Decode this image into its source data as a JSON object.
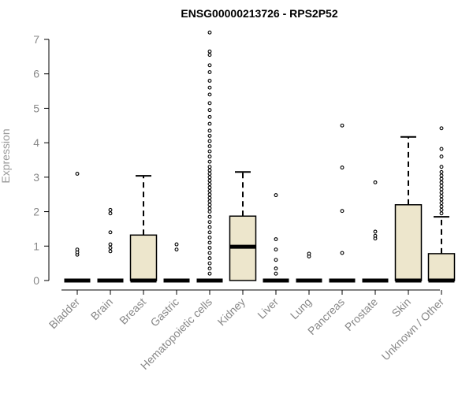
{
  "chart_data": {
    "type": "boxplot",
    "title": "ENSG00000213726 - RPS2P52",
    "ylabel": "Expression",
    "xlabel": "",
    "ylim": [
      0,
      7
    ],
    "yticks": [
      0,
      1,
      2,
      3,
      4,
      5,
      6,
      7
    ],
    "categories": [
      "Bladder",
      "Brain",
      "Breast",
      "Gastric",
      "Hematopoietic cells",
      "Kidney",
      "Liver",
      "Lung",
      "Pancreas",
      "Prostate",
      "Skin",
      "Unknown / Other"
    ],
    "box_fill": "#ede6cc",
    "grid": false,
    "boxes": [
      {
        "q1": 0,
        "median": 0,
        "q3": 0,
        "whisker_low": 0,
        "whisker_high": 0,
        "outliers": [
          0.75,
          0.82,
          0.9,
          3.1
        ]
      },
      {
        "q1": 0,
        "median": 0,
        "q3": 0,
        "whisker_low": 0,
        "whisker_high": 0,
        "outliers": [
          0.85,
          0.95,
          1.05,
          1.4,
          1.95,
          2.05
        ]
      },
      {
        "q1": 0,
        "median": 0,
        "q3": 1.32,
        "whisker_low": 0,
        "whisker_high": 3.04,
        "outliers": []
      },
      {
        "q1": 0,
        "median": 0,
        "q3": 0,
        "whisker_low": 0,
        "whisker_high": 0,
        "outliers": [
          0.9,
          1.05
        ]
      },
      {
        "q1": 0,
        "median": 0,
        "q3": 0,
        "whisker_low": 0,
        "whisker_high": 0,
        "outliers": [
          0.2,
          0.35,
          0.5,
          0.65,
          0.8,
          0.95,
          1.1,
          1.25,
          1.4,
          1.55,
          1.7,
          1.85,
          2.0,
          2.1,
          2.2,
          2.3,
          2.4,
          2.5,
          2.6,
          2.7,
          2.8,
          2.9,
          3.0,
          3.1,
          3.2,
          3.3,
          3.45,
          3.6,
          3.75,
          3.9,
          4.05,
          4.2,
          4.35,
          4.55,
          4.75,
          4.95,
          5.15,
          5.4,
          5.6,
          5.8,
          6.05,
          6.25,
          6.55,
          6.65,
          7.2
        ]
      },
      {
        "q1": 0,
        "median": 0.98,
        "q3": 1.87,
        "whisker_low": 0,
        "whisker_high": 3.15,
        "outliers": []
      },
      {
        "q1": 0,
        "median": 0,
        "q3": 0,
        "whisker_low": 0,
        "whisker_high": 0,
        "outliers": [
          0.2,
          0.35,
          0.6,
          0.9,
          1.2,
          2.48
        ]
      },
      {
        "q1": 0,
        "median": 0,
        "q3": 0,
        "whisker_low": 0,
        "whisker_high": 0,
        "outliers": [
          0.7,
          0.78
        ]
      },
      {
        "q1": 0,
        "median": 0,
        "q3": 0,
        "whisker_low": 0,
        "whisker_high": 0,
        "outliers": [
          0.8,
          2.02,
          3.28,
          4.5
        ]
      },
      {
        "q1": 0,
        "median": 0,
        "q3": 0,
        "whisker_low": 0,
        "whisker_high": 0,
        "outliers": [
          1.22,
          1.3,
          1.42,
          2.85
        ]
      },
      {
        "q1": 0,
        "median": 0,
        "q3": 2.2,
        "whisker_low": 0,
        "whisker_high": 4.17,
        "outliers": []
      },
      {
        "q1": 0,
        "median": 0,
        "q3": 0.78,
        "whisker_low": 0,
        "whisker_high": 1.85,
        "outliers": [
          1.95,
          2.05,
          2.15,
          2.25,
          2.35,
          2.45,
          2.55,
          2.65,
          2.75,
          2.85,
          2.95,
          3.05,
          3.15,
          3.3,
          3.6,
          3.82,
          4.42
        ]
      }
    ]
  }
}
